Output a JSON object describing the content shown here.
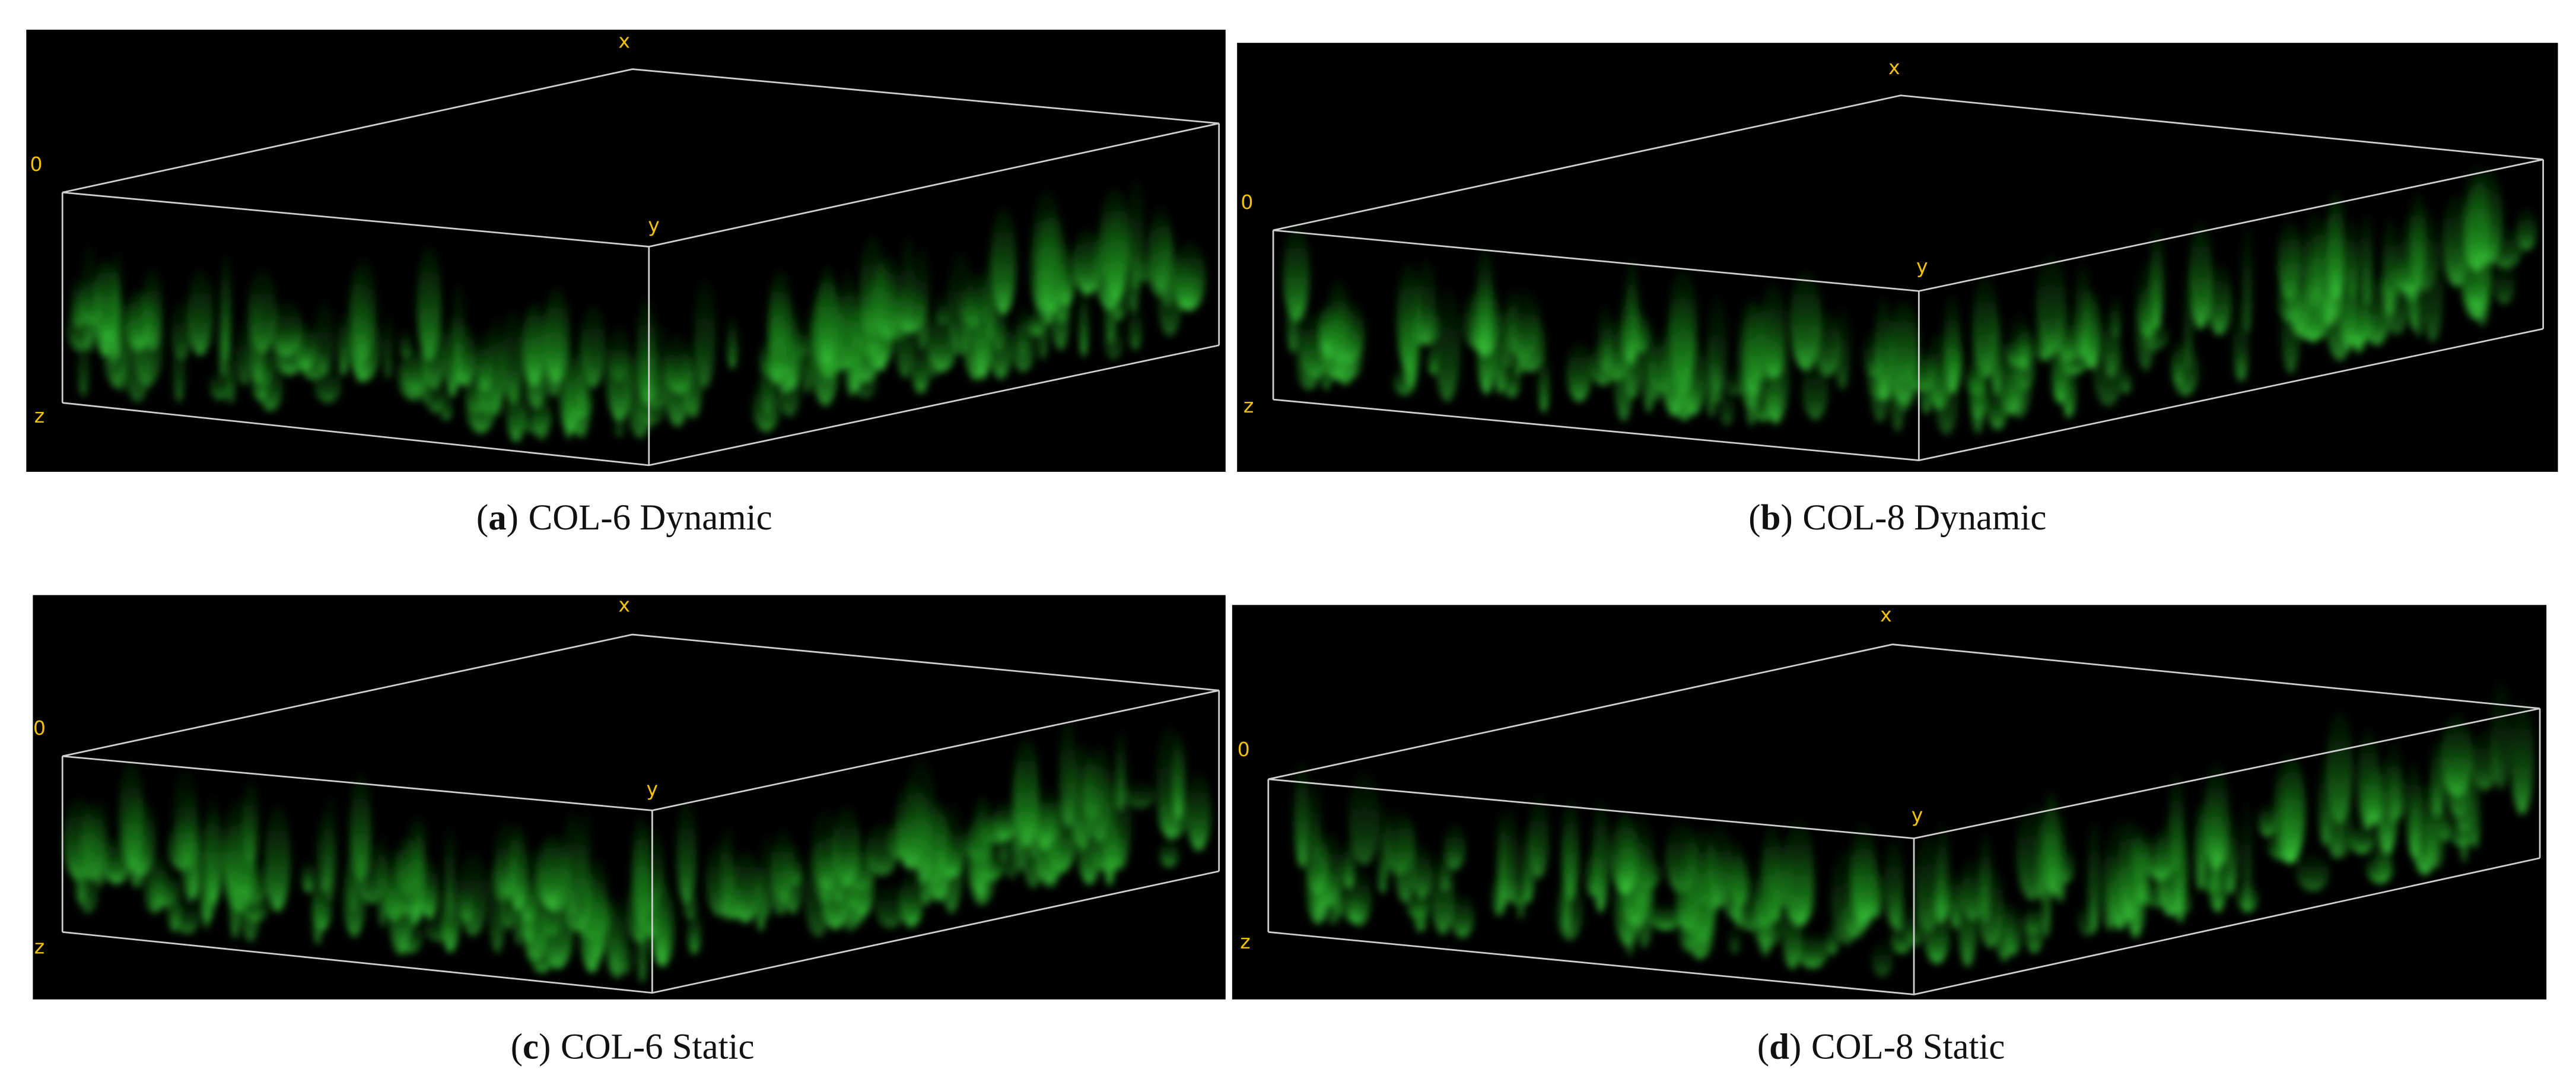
{
  "panels": [
    {
      "label": "(a)",
      "caption": "COL-6 Dynamic",
      "axes": {
        "x": "x",
        "origin": "0",
        "y": "y",
        "z": "z"
      }
    },
    {
      "label": "(b)",
      "caption": "COL-8 Dynamic",
      "axes": {
        "x": "x",
        "origin": "0",
        "y": "y",
        "z": "z"
      }
    },
    {
      "label": "(c)",
      "caption": "COL-6 Static",
      "axes": {
        "x": "x",
        "origin": "0",
        "y": "y",
        "z": "z"
      }
    },
    {
      "label": "(d)",
      "caption": "COL-8 Static",
      "axes": {
        "x": "x",
        "origin": "0",
        "y": "y",
        "z": "z"
      }
    }
  ]
}
